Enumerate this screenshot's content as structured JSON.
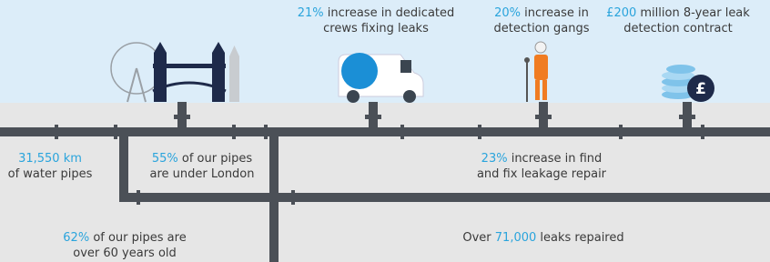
{
  "stats": [
    {
      "lines": [
        {
          "accent": "21%",
          "text": " increase in dedicated"
        },
        {
          "text": "crews fixing leaks"
        }
      ]
    },
    {
      "lines": [
        {
          "accent": "20%",
          "text": " increase in"
        },
        {
          "text": "detection gangs"
        }
      ]
    },
    {
      "lines": [
        {
          "accent": "£200",
          "text": " million 8-year leak"
        },
        {
          "text": "detection contract"
        }
      ]
    },
    {
      "lines": [
        {
          "accent": "31,550 km"
        },
        {
          "text": "of water pipes"
        }
      ]
    },
    {
      "lines": [
        {
          "accent": "55%",
          "text": " of our pipes"
        },
        {
          "text": "are under London"
        }
      ]
    },
    {
      "lines": [
        {
          "accent": "23%",
          "text": " increase in find"
        },
        {
          "text": "and fix leakage repair"
        }
      ]
    },
    {
      "lines": [
        {
          "accent": "62%",
          "text": " of our pipes are"
        },
        {
          "text": "over 60 years old"
        }
      ]
    },
    {
      "lines": [
        {
          "lead": "Over ",
          "accent": "71,000",
          "text": " leaks repaired"
        }
      ]
    }
  ],
  "coin_symbol": "£"
}
